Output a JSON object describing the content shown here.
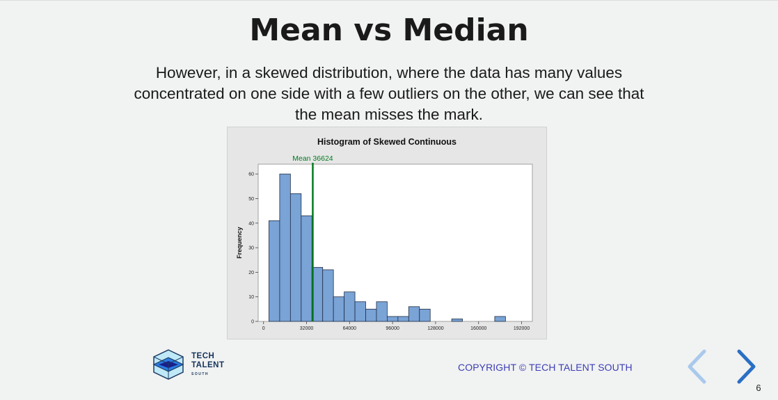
{
  "slide": {
    "title": "Mean vs Median",
    "body_lines": [
      "However, in a skewed distribution, where the data has many values",
      "concentrated on one side with a few outliers on the other, we can see that",
      "the mean misses the mark."
    ],
    "page_number": "6"
  },
  "footer": {
    "copyright": "COPYRIGHT © TECH TALENT SOUTH",
    "logo_lines": [
      "TECH",
      "TALENT",
      "SOUTH"
    ]
  },
  "colors": {
    "bar_fill": "#7aa3d6",
    "bar_stroke": "#1f2d44",
    "mean_line": "#007a1e",
    "copyright": "#3b3eb3",
    "nav_prev": "#a9c9ec",
    "nav_next": "#2a6fc4"
  },
  "icons": {
    "prev": "chevron-left-icon",
    "next": "chevron-right-icon",
    "logo": "tech-talent-south-cube-logo"
  },
  "chart_data": {
    "type": "bar",
    "title": "Histogram of Skewed Continuous",
    "xlabel": "",
    "ylabel": "Frequency",
    "xlim": [
      -4000,
      200000
    ],
    "ylim": [
      0,
      64
    ],
    "bin_width": 8000,
    "x_ticks": [
      0,
      32000,
      64000,
      96000,
      128000,
      160000,
      192000
    ],
    "y_ticks": [
      0,
      10,
      20,
      30,
      40,
      50,
      60
    ],
    "bins": [
      {
        "start": 4000,
        "value": 41
      },
      {
        "start": 12000,
        "value": 60
      },
      {
        "start": 20000,
        "value": 52
      },
      {
        "start": 28000,
        "value": 43
      },
      {
        "start": 36000,
        "value": 22
      },
      {
        "start": 44000,
        "value": 21
      },
      {
        "start": 52000,
        "value": 10
      },
      {
        "start": 60000,
        "value": 12
      },
      {
        "start": 68000,
        "value": 8
      },
      {
        "start": 76000,
        "value": 5
      },
      {
        "start": 84000,
        "value": 8
      },
      {
        "start": 92000,
        "value": 2
      },
      {
        "start": 100000,
        "value": 2
      },
      {
        "start": 108000,
        "value": 6
      },
      {
        "start": 116000,
        "value": 5
      },
      {
        "start": 124000,
        "value": 0
      },
      {
        "start": 132000,
        "value": 0
      },
      {
        "start": 140000,
        "value": 1
      },
      {
        "start": 148000,
        "value": 0
      },
      {
        "start": 156000,
        "value": 0
      },
      {
        "start": 164000,
        "value": 0
      },
      {
        "start": 172000,
        "value": 2
      }
    ],
    "reference_line": {
      "label": "Mean 36624",
      "value": 36624
    },
    "grid": false,
    "legend": "none"
  }
}
